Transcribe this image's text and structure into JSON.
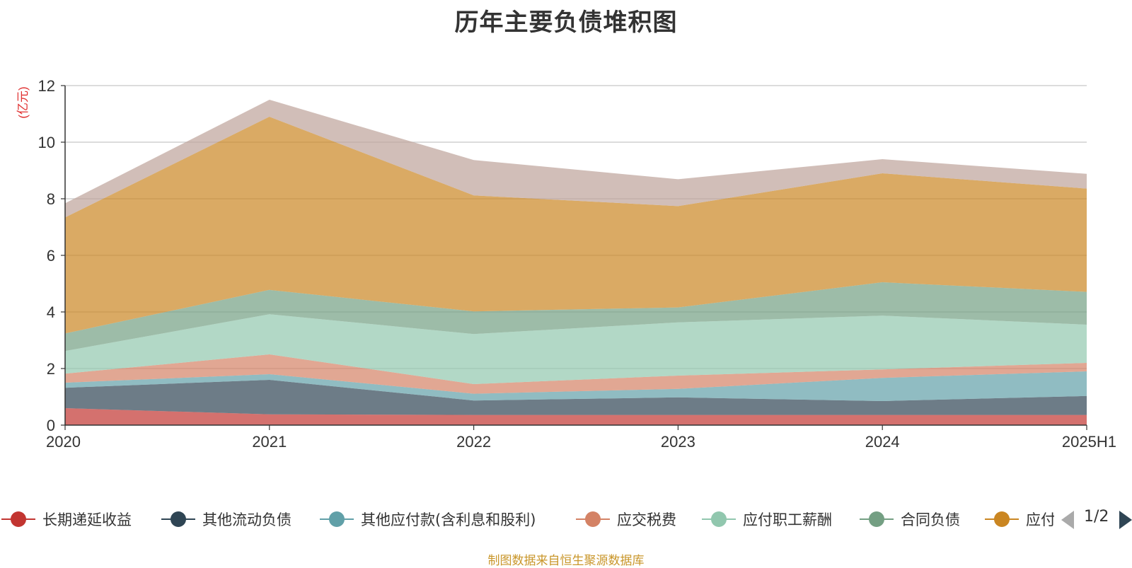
{
  "chart_data": {
    "type": "area",
    "title": "历年主要负债堆积图",
    "ylabel": "(亿元)",
    "xlabel": "",
    "categories": [
      "2020",
      "2021",
      "2022",
      "2023",
      "2024",
      "2025H1"
    ],
    "ylim": [
      0,
      12
    ],
    "yticks": [
      0,
      2,
      4,
      6,
      8,
      10,
      12
    ],
    "stacked": true,
    "grid": true,
    "legend_position": "bottom",
    "series": [
      {
        "name": "长期递延收益",
        "color": "#c23531",
        "values": [
          0.6,
          0.38,
          0.36,
          0.36,
          0.36,
          0.36
        ]
      },
      {
        "name": "其他流动负债",
        "color": "#2f4554",
        "values": [
          0.72,
          1.22,
          0.51,
          0.62,
          0.49,
          0.67
        ]
      },
      {
        "name": "其他应付款(含利息和股利)",
        "color": "#61a0a8",
        "values": [
          0.18,
          0.2,
          0.24,
          0.3,
          0.82,
          0.87
        ]
      },
      {
        "name": "应交税费",
        "color": "#d48265",
        "values": [
          0.32,
          0.7,
          0.34,
          0.47,
          0.3,
          0.3
        ]
      },
      {
        "name": "应付职工薪酬",
        "color": "#91c7ae",
        "values": [
          0.8,
          1.42,
          1.77,
          1.88,
          1.9,
          1.35
        ]
      },
      {
        "name": "合同负债",
        "color": "#749f83",
        "values": [
          0.62,
          0.86,
          0.8,
          0.53,
          1.18,
          1.16
        ]
      },
      {
        "name": "应付账款",
        "color": "#ca8622",
        "values": [
          4.1,
          6.12,
          4.1,
          3.58,
          3.85,
          3.65
        ]
      },
      {
        "name": "",
        "color": "#bda29a",
        "values": [
          0.5,
          0.6,
          1.25,
          0.95,
          0.5,
          0.52
        ]
      }
    ]
  },
  "legend_visible": [
    "长期递延收益",
    "其他流动负债",
    "其他应付款(含利息和股利)",
    "应交税费",
    "应付职工薪酬",
    "合同负债",
    "应付账款"
  ],
  "pager": {
    "label": "1/2"
  },
  "source_note": "制图数据来自恒生聚源数据库"
}
